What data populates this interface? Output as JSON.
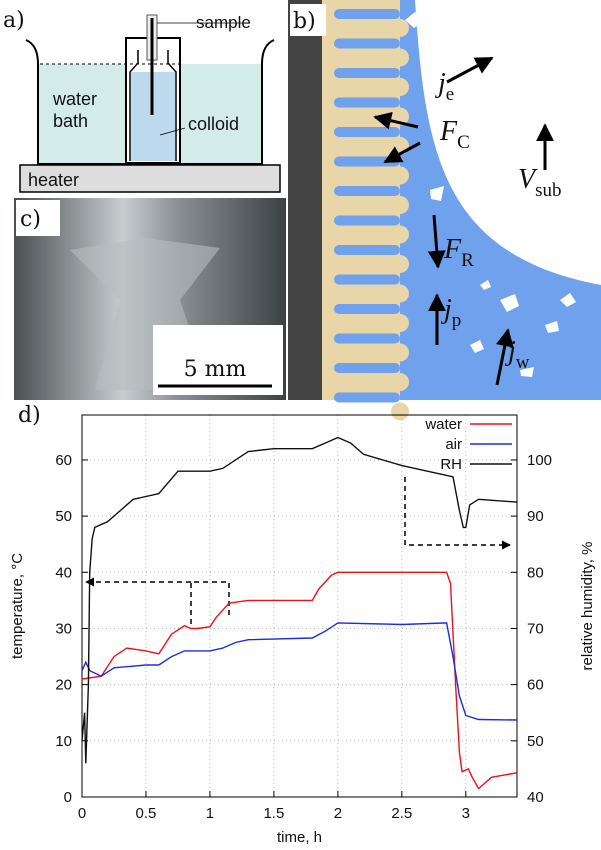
{
  "panels": {
    "a": {
      "label": "a)",
      "sample": "sample",
      "water_bath": [
        "water",
        "bath"
      ],
      "colloid": "colloid",
      "heater": "heater"
    },
    "b": {
      "label": "b)",
      "symbols": [
        {
          "main": "j",
          "sub": "e"
        },
        {
          "main": "F",
          "sub": "C"
        },
        {
          "main": "V",
          "sub": "sub"
        },
        {
          "main": "F",
          "sub": "R"
        },
        {
          "main": "j",
          "sub": "p"
        },
        {
          "main": "j",
          "sub": "w"
        }
      ]
    },
    "c": {
      "label": "c)",
      "scale": "5 mm"
    },
    "d": {
      "label": "d)"
    }
  },
  "chart_data": {
    "type": "line",
    "xlabel": "time, h",
    "ylabel": "temperature, °C",
    "y2label": "relative humidity, %",
    "xlim": [
      0,
      3.4
    ],
    "xticks": [
      0,
      0.5,
      1,
      1.5,
      2,
      2.5,
      3
    ],
    "ylim": [
      0,
      68
    ],
    "yticks": [
      0,
      10,
      20,
      30,
      40,
      50,
      60
    ],
    "y2lim": [
      40,
      108
    ],
    "y2ticks": [
      40,
      50,
      60,
      70,
      80,
      90,
      100
    ],
    "grid": true,
    "legend": "upper right",
    "series": [
      {
        "name": "water",
        "color": "#e8141c",
        "x": [
          0,
          0.15,
          0.25,
          0.35,
          0.5,
          0.6,
          0.7,
          0.8,
          0.85,
          0.9,
          1.0,
          1.05,
          1.15,
          1.3,
          1.5,
          1.8,
          1.85,
          1.95,
          2.0,
          2.5,
          2.85,
          2.88,
          2.92,
          2.95,
          2.97,
          3.02,
          3.05,
          3.1,
          3.15,
          3.2,
          3.4
        ],
        "values": [
          21,
          21.5,
          25,
          26.5,
          26,
          25.5,
          29,
          30.5,
          30,
          30,
          30.3,
          32,
          34.5,
          35,
          35,
          35,
          37,
          39.5,
          40,
          40,
          40,
          38,
          20,
          8,
          4.5,
          5,
          3.5,
          1.5,
          2.5,
          3.5,
          4.3
        ]
      },
      {
        "name": "air",
        "color": "#1a2ee0",
        "x": [
          0,
          0.03,
          0.06,
          0.15,
          0.25,
          0.5,
          0.6,
          0.7,
          0.8,
          1.0,
          1.1,
          1.2,
          1.3,
          1.8,
          1.9,
          2.0,
          2.5,
          2.85,
          2.9,
          2.95,
          3.0,
          3.1,
          3.4
        ],
        "values": [
          22.5,
          24,
          22.5,
          21.5,
          23,
          23.5,
          23.5,
          25,
          26,
          26,
          26.5,
          27.5,
          28,
          28.3,
          29.5,
          31,
          30.7,
          31,
          25,
          18,
          14.5,
          13.8,
          13.7
        ]
      },
      {
        "name": "RH",
        "color": "#111111",
        "axis": "y2",
        "x": [
          0,
          0.02,
          0.03,
          0.05,
          0.06,
          0.08,
          0.1,
          0.2,
          0.3,
          0.4,
          0.5,
          0.6,
          0.75,
          1.0,
          1.1,
          1.3,
          1.5,
          1.8,
          1.9,
          2.0,
          2.1,
          2.2,
          2.5,
          2.9,
          2.95,
          2.98,
          3.0,
          3.03,
          3.1,
          3.4
        ],
        "values": [
          50,
          55,
          46,
          60,
          80,
          86,
          88,
          89,
          91,
          93,
          93.5,
          94,
          98,
          98,
          98.5,
          101.5,
          102,
          102,
          103,
          104,
          103,
          101,
          99,
          97,
          91,
          88,
          88,
          92,
          93,
          92.5
        ]
      }
    ]
  }
}
